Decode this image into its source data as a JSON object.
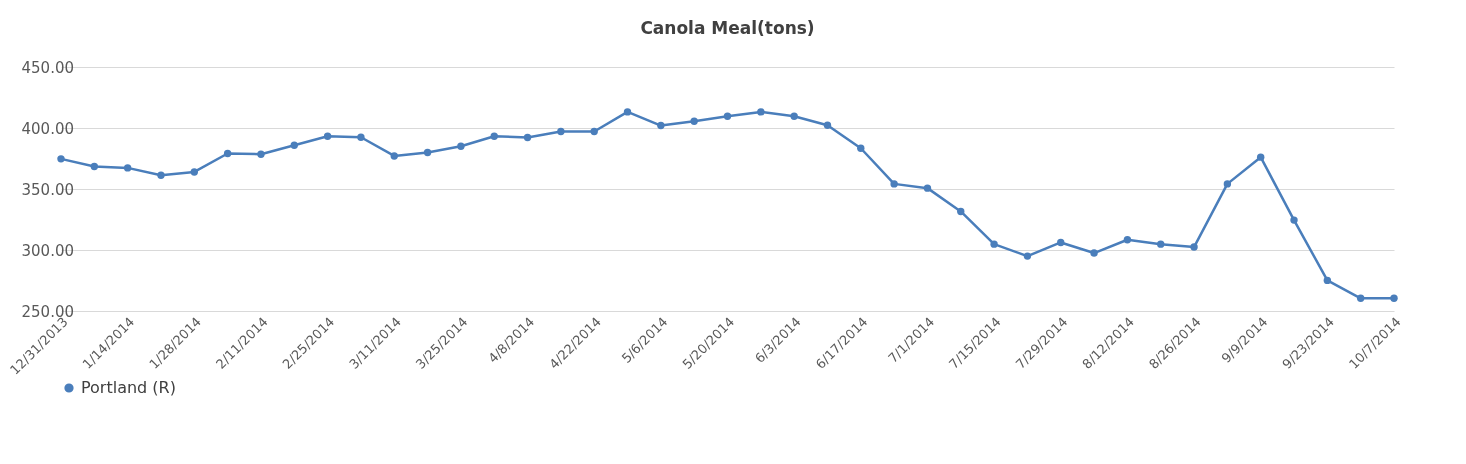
{
  "chart_data": {
    "type": "line",
    "title": "Canola Meal(tons)",
    "categories": [
      "12/31/2013",
      null,
      "1/14/2014",
      null,
      "1/28/2014",
      null,
      "2/11/2014",
      null,
      "2/25/2014",
      null,
      "3/11/2014",
      null,
      "3/25/2014",
      null,
      "4/8/2014",
      null,
      "4/22/2014",
      null,
      "5/6/2014",
      null,
      "5/20/2014",
      null,
      "6/3/2014",
      null,
      "6/17/2014",
      null,
      "7/1/2014",
      null,
      "7/15/2014",
      null,
      "7/29/2014",
      null,
      "8/12/2014",
      null,
      "8/26/2014",
      null,
      "9/9/2014",
      null,
      "9/23/2014",
      null,
      "10/7/2014"
    ],
    "series": [
      {
        "name": "Portland (R)",
        "color": "#4a7ebb",
        "values": [
          374.7,
          368.4,
          367.3,
          361.3,
          364.0,
          379.1,
          378.5,
          385.9,
          393.2,
          392.4,
          377.1,
          379.9,
          385.1,
          393.2,
          392.2,
          397.1,
          397.1,
          413.2,
          402.0,
          405.5,
          409.6,
          413.2,
          409.6,
          402.3,
          383.4,
          354.2,
          350.7,
          331.6,
          304.8,
          295.0,
          306.2,
          297.5,
          308.4,
          304.8,
          302.4,
          354.2,
          376.1,
          324.5,
          275.1,
          260.4,
          260.4
        ]
      }
    ],
    "ylim": [
      250,
      450
    ],
    "yticks": [
      {
        "value": 250,
        "label": "250.00"
      },
      {
        "value": 300,
        "label": "300.00"
      },
      {
        "value": 350,
        "label": "350.00"
      },
      {
        "value": 400,
        "label": "400.00"
      },
      {
        "value": 450,
        "label": "450.00"
      }
    ],
    "grid": "y",
    "legend": "bottom",
    "marker": "circle",
    "line_style": "solid"
  }
}
